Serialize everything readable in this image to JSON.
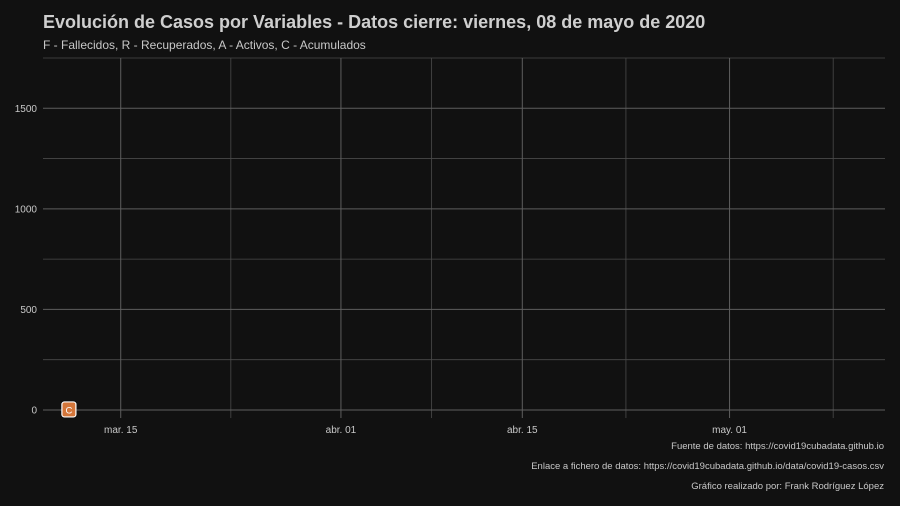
{
  "chart_data": {
    "type": "line",
    "title": "Evolución de Casos por Variables - Datos cierre: viernes, 08 de mayo de 2020",
    "subtitle": "F - Fallecidos, R - Recuperados, A - Activos, C - Acumulados",
    "x_ticks": [
      {
        "date": "2020-03-15",
        "label": "mar. 15"
      },
      {
        "date": "2020-04-01",
        "label": "abr. 01"
      },
      {
        "date": "2020-04-15",
        "label": "abr. 15"
      },
      {
        "date": "2020-05-01",
        "label": "may. 01"
      }
    ],
    "xlim": [
      "2020-03-09",
      "2020-05-13"
    ],
    "y_ticks": [
      0,
      500,
      1000,
      1500
    ],
    "ylim": [
      -40,
      1750
    ],
    "grid": true,
    "series": [
      {
        "name": "C",
        "color": "#d4763a",
        "points": [
          {
            "date": "2020-03-11",
            "value": 0,
            "label": "C"
          }
        ]
      }
    ]
  },
  "captions": {
    "source": "Fuente de datos: https://covid19cubadata.github.io",
    "file_link": "Enlace a fichero de datos: https://covid19cubadata.github.io/data/covid19-casos.csv",
    "author": "Gráfico realizado por: Frank Rodríguez López"
  }
}
